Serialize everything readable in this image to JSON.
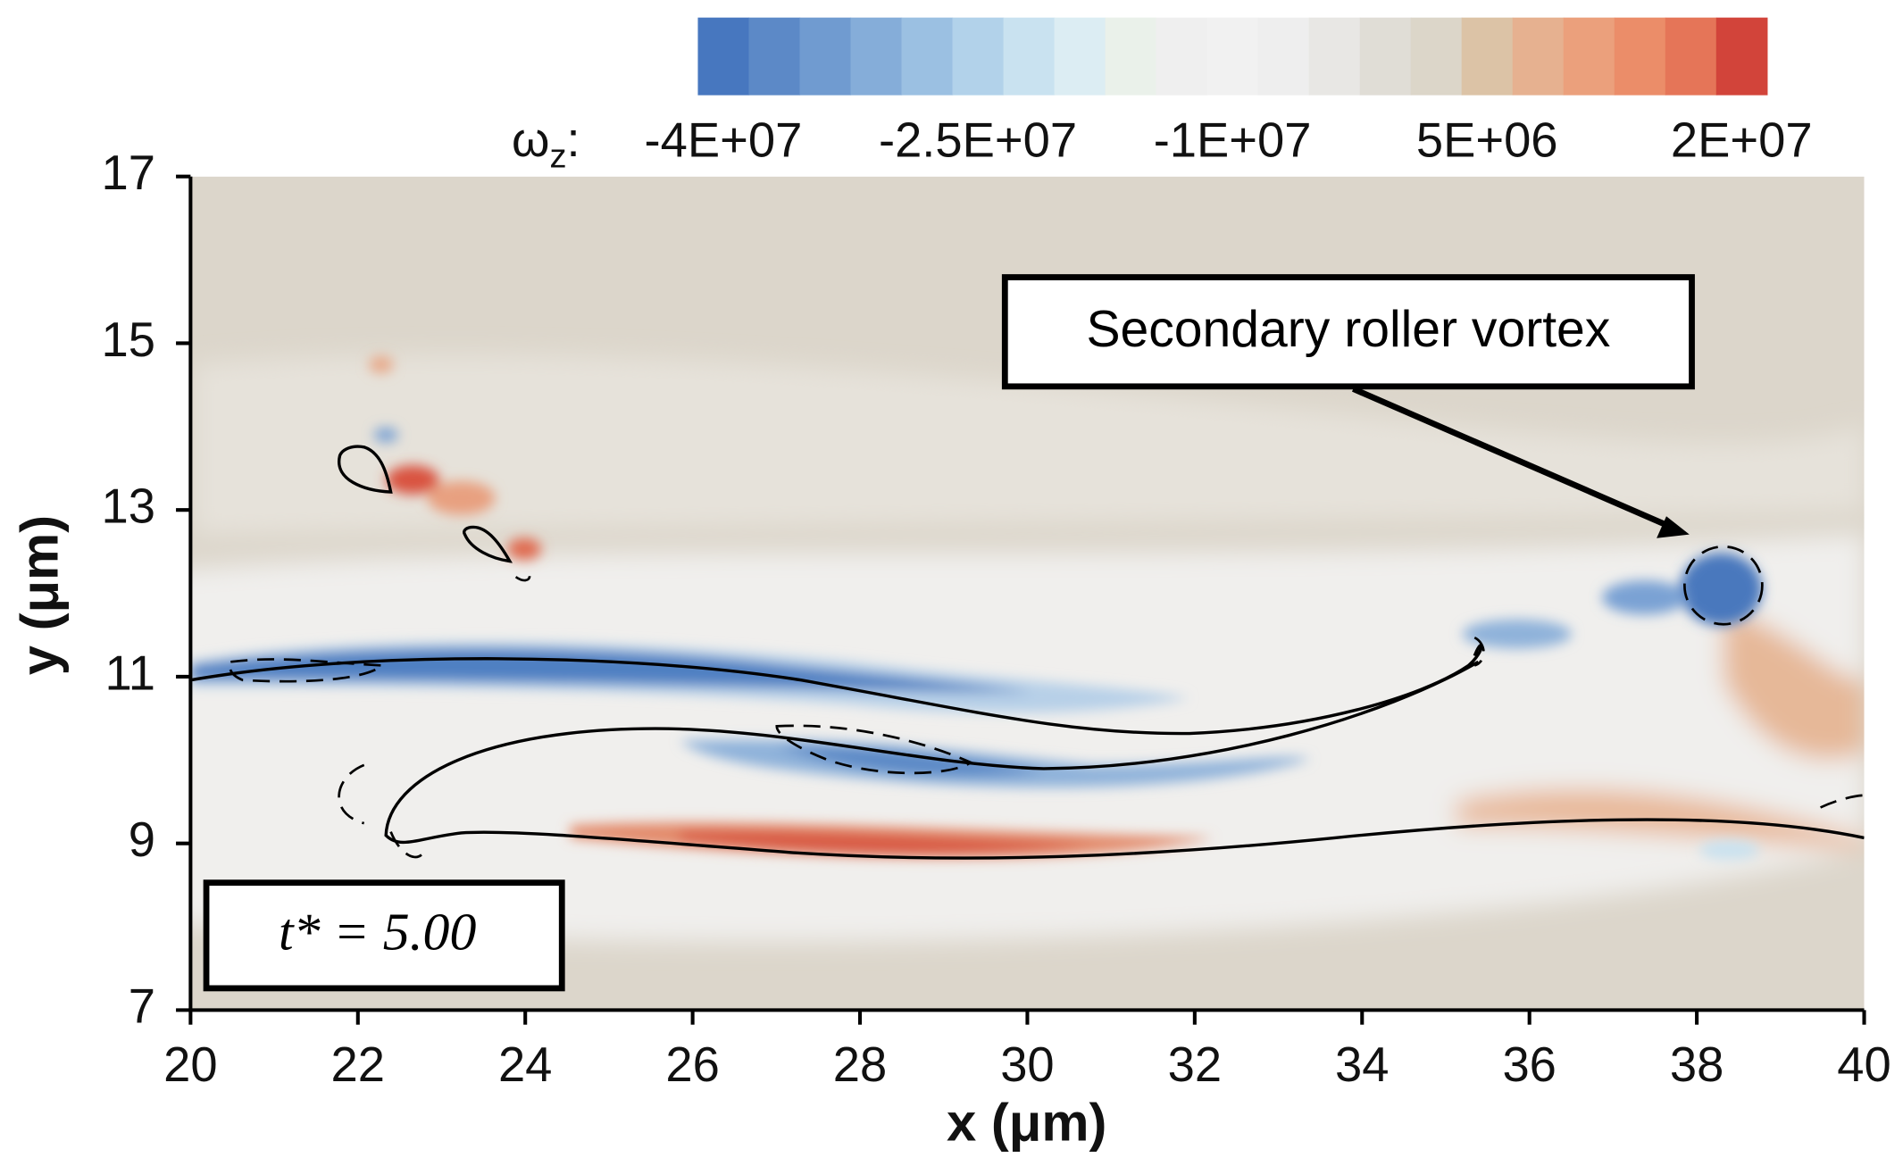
{
  "chart_data": {
    "type": "contour",
    "xlabel": "x (μm)",
    "ylabel": "y (μm)",
    "xlim": [
      20,
      40
    ],
    "ylim": [
      7,
      17
    ],
    "xticks": [
      20,
      22,
      24,
      26,
      28,
      30,
      32,
      34,
      36,
      38,
      40
    ],
    "yticks": [
      7,
      9,
      11,
      13,
      15,
      17
    ],
    "colorbar": {
      "label": "ωz:",
      "clim": [
        -41500000,
        21500000
      ],
      "colors": [
        "#4777bf",
        "#5c89c7",
        "#709bd0",
        "#85add9",
        "#9bc0e2",
        "#b2d2ea",
        "#c9e2f0",
        "#dcedf3",
        "#eaf1ea",
        "#efefef",
        "#f1f1f1",
        "#eeeeee",
        "#e8e7e4",
        "#e0ddd6",
        "#dcd6c9",
        "#dcc3a6",
        "#e6b190",
        "#eba07c",
        "#eb8d69",
        "#e57558",
        "#d2443a"
      ],
      "ticks": [
        {
          "value": -40000000,
          "label": "-4E+07"
        },
        {
          "value": -25000000,
          "label": "-2.5E+07"
        },
        {
          "value": -10000000,
          "label": "-1E+07"
        },
        {
          "value": 5000000,
          "label": "5E+06"
        },
        {
          "value": 20000000,
          "label": "2E+07"
        }
      ]
    },
    "annotations": [
      "Secondary roller vortex",
      "t* = 5.00"
    ]
  }
}
